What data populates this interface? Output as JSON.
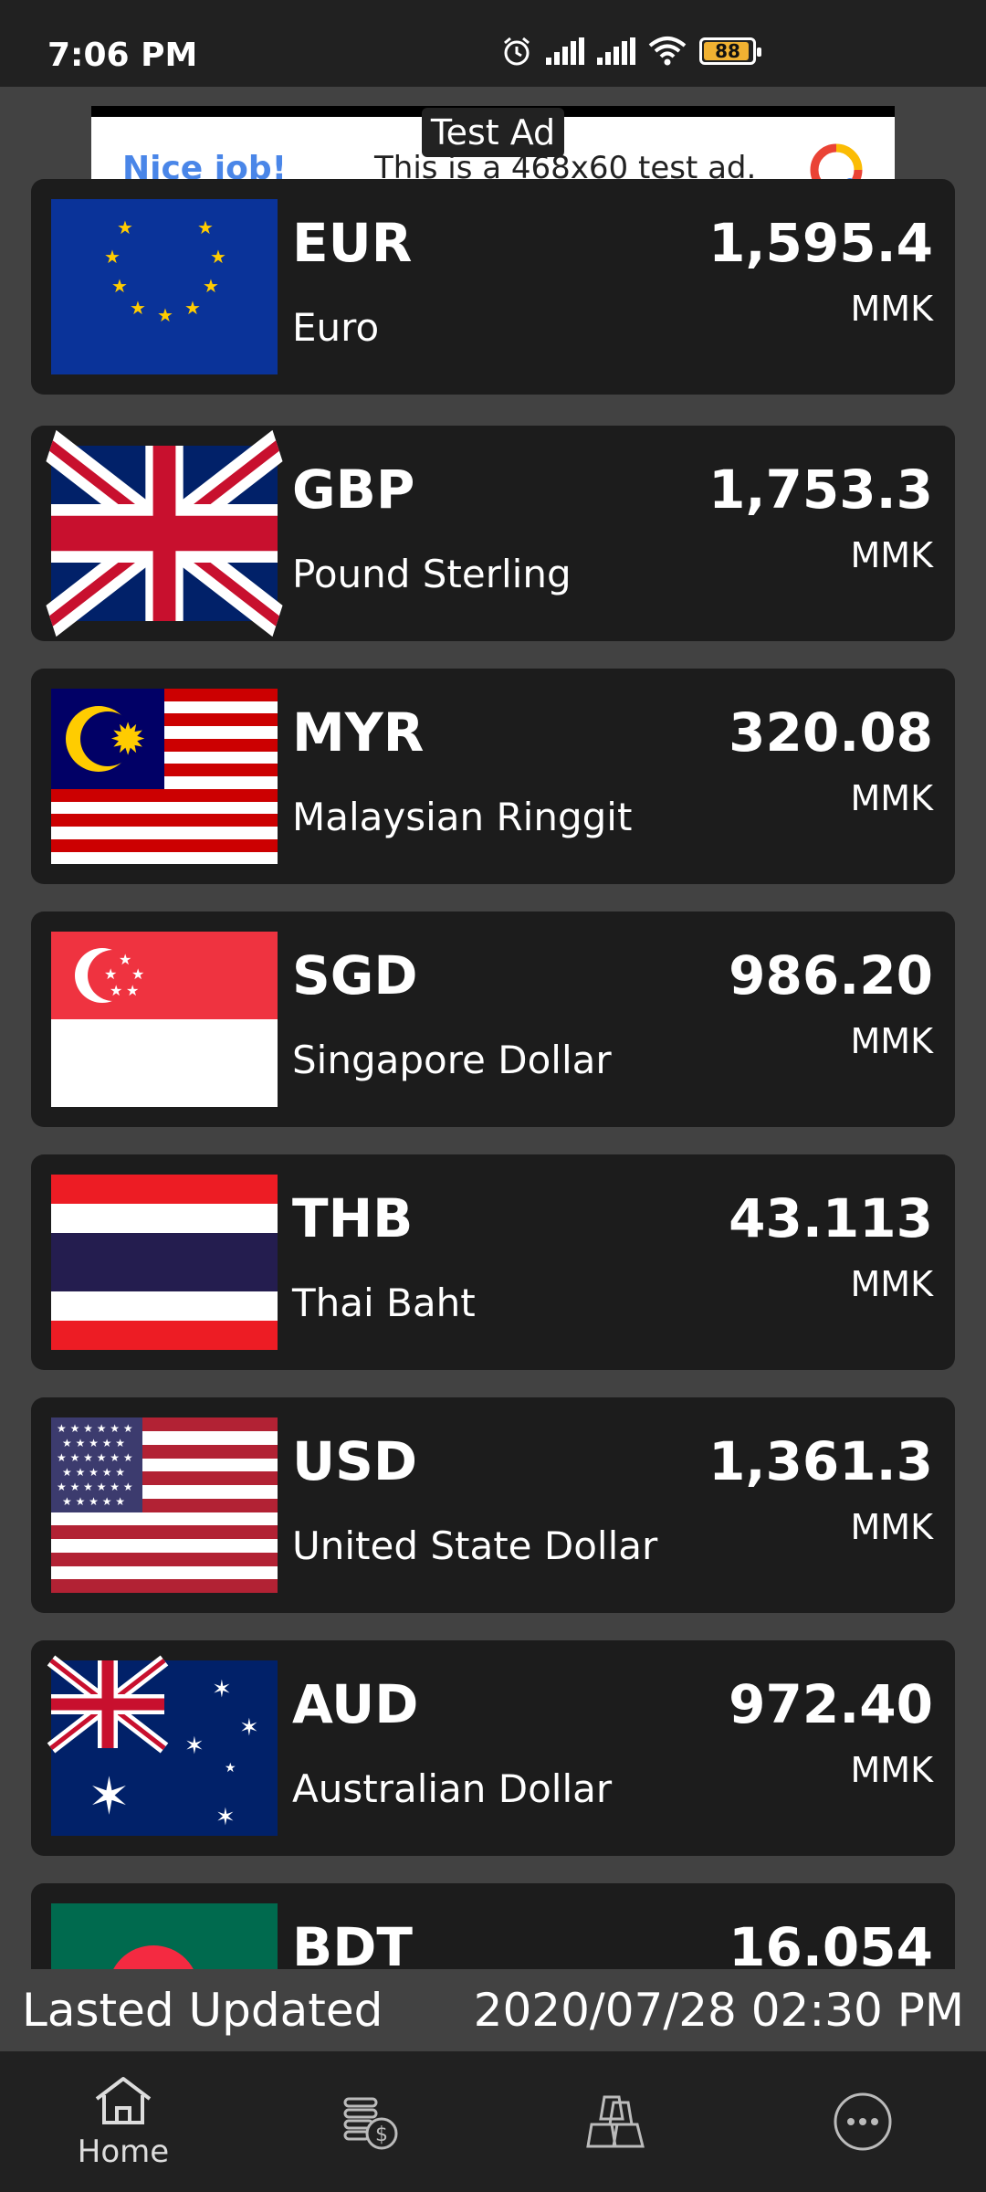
{
  "status": {
    "time": "7:06 PM",
    "battery": "88"
  },
  "ad": {
    "label": "Test Ad",
    "nice": "Nice job!",
    "text": "This is a 468x60 test ad."
  },
  "rates": [
    {
      "code": "EUR",
      "name": "Euro",
      "rate": "1,595.4",
      "unit": "MMK",
      "flag": "eu-flag"
    },
    {
      "code": "GBP",
      "name": "Pound Sterling",
      "rate": "1,753.3",
      "unit": "MMK",
      "flag": "uk-flag"
    },
    {
      "code": "MYR",
      "name": "Malaysian Ringgit",
      "rate": "320.08",
      "unit": "MMK",
      "flag": "malaysia-flag"
    },
    {
      "code": "SGD",
      "name": "Singapore Dollar",
      "rate": "986.20",
      "unit": "MMK",
      "flag": "singapore-flag"
    },
    {
      "code": "THB",
      "name": "Thai Baht",
      "rate": "43.113",
      "unit": "MMK",
      "flag": "thailand-flag"
    },
    {
      "code": "USD",
      "name": "United State Dollar",
      "rate": "1,361.3",
      "unit": "MMK",
      "flag": "usa-flag"
    },
    {
      "code": "AUD",
      "name": "Australian Dollar",
      "rate": "972.40",
      "unit": "MMK",
      "flag": "australia-flag"
    },
    {
      "code": "BDT",
      "name": "",
      "rate": "16.054",
      "unit": "",
      "flag": "bangladesh-flag"
    }
  ],
  "footer": {
    "label": "Lasted Updated",
    "datetime": "2020/07/28 02:30 PM"
  },
  "nav": {
    "home": "Home"
  },
  "colors": {
    "background": "#424242",
    "card": "#1c1c1c",
    "bars": "#212121",
    "ad_accent": "#4a86e8"
  }
}
